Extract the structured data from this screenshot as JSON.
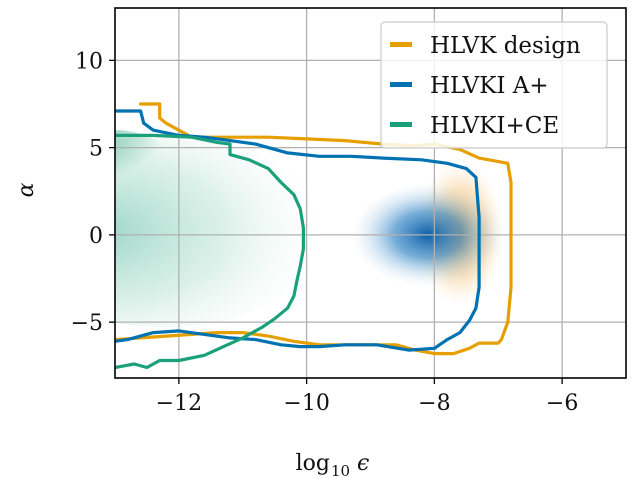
{
  "chart_data": {
    "type": "heatmap",
    "xlabel": "log",
    "xlabel_sub": "10",
    "xlabel_var": "ϵ",
    "ylabel": "α",
    "xlim": [
      -13,
      -5
    ],
    "ylim": [
      -8.2,
      13
    ],
    "grid": true,
    "legend_position": "top-right",
    "x_ticks": [
      -12,
      -10,
      -8,
      -6
    ],
    "x_tick_labels": [
      "−12",
      "−10",
      "−8",
      "−6"
    ],
    "y_ticks": [
      -5,
      0,
      5,
      10
    ],
    "y_tick_labels": [
      "−5",
      "0",
      "5",
      "10"
    ],
    "series": [
      {
        "name": "HLVK design",
        "color": "#e69f00",
        "contour": [
          [
            -12.6,
            7.5
          ],
          [
            -12.3,
            7.5
          ],
          [
            -12.3,
            6.7
          ],
          [
            -12.2,
            6.4
          ],
          [
            -12.0,
            6.0
          ],
          [
            -11.8,
            5.6
          ],
          [
            -11.2,
            5.6
          ],
          [
            -10.6,
            5.6
          ],
          [
            -10.0,
            5.5
          ],
          [
            -9.4,
            5.4
          ],
          [
            -8.8,
            5.2
          ],
          [
            -8.3,
            5.1
          ],
          [
            -8.0,
            5.2
          ],
          [
            -7.6,
            4.9
          ],
          [
            -7.3,
            4.4
          ],
          [
            -7.0,
            4.2
          ],
          [
            -6.85,
            4.1
          ],
          [
            -6.8,
            3.0
          ],
          [
            -6.8,
            1.0
          ],
          [
            -6.8,
            -1.0
          ],
          [
            -6.8,
            -3.0
          ],
          [
            -6.85,
            -5.0
          ],
          [
            -6.95,
            -6.0
          ],
          [
            -7.0,
            -6.2
          ],
          [
            -7.3,
            -6.2
          ],
          [
            -7.45,
            -6.5
          ],
          [
            -7.7,
            -6.8
          ],
          [
            -8.0,
            -6.8
          ],
          [
            -8.3,
            -6.6
          ],
          [
            -8.6,
            -6.3
          ],
          [
            -9.0,
            -6.3
          ],
          [
            -9.4,
            -6.3
          ],
          [
            -9.8,
            -6.3
          ],
          [
            -10.2,
            -6.1
          ],
          [
            -10.6,
            -5.8
          ],
          [
            -11.0,
            -5.6
          ],
          [
            -11.4,
            -5.6
          ],
          [
            -11.8,
            -5.7
          ],
          [
            -12.2,
            -5.8
          ],
          [
            -12.6,
            -5.9
          ],
          [
            -13.0,
            -6.0
          ]
        ]
      },
      {
        "name": "HLVKI A+",
        "color": "#0072b2",
        "contour": [
          [
            -13.0,
            7.1
          ],
          [
            -12.6,
            7.1
          ],
          [
            -12.55,
            6.4
          ],
          [
            -12.4,
            6.0
          ],
          [
            -12.0,
            5.7
          ],
          [
            -11.6,
            5.6
          ],
          [
            -11.2,
            5.4
          ],
          [
            -10.8,
            5.2
          ],
          [
            -10.3,
            4.7
          ],
          [
            -9.8,
            4.5
          ],
          [
            -9.3,
            4.5
          ],
          [
            -8.8,
            4.4
          ],
          [
            -8.2,
            4.3
          ],
          [
            -7.8,
            4.1
          ],
          [
            -7.5,
            3.8
          ],
          [
            -7.35,
            3.3
          ],
          [
            -7.3,
            1.0
          ],
          [
            -7.3,
            -1.0
          ],
          [
            -7.3,
            -3.0
          ],
          [
            -7.35,
            -4.2
          ],
          [
            -7.45,
            -4.9
          ],
          [
            -7.6,
            -5.6
          ],
          [
            -7.8,
            -6.0
          ],
          [
            -8.0,
            -6.5
          ],
          [
            -8.4,
            -6.6
          ],
          [
            -8.9,
            -6.3
          ],
          [
            -9.4,
            -6.3
          ],
          [
            -9.8,
            -6.4
          ],
          [
            -10.1,
            -6.4
          ],
          [
            -10.4,
            -6.3
          ],
          [
            -10.8,
            -6.0
          ],
          [
            -11.2,
            -5.9
          ],
          [
            -11.6,
            -5.7
          ],
          [
            -12.0,
            -5.5
          ],
          [
            -12.4,
            -5.6
          ],
          [
            -12.8,
            -6.0
          ],
          [
            -13.0,
            -6.1
          ]
        ]
      },
      {
        "name": "HLVKI+CE",
        "color": "#1aa07a",
        "contour": [
          [
            -13.0,
            5.7
          ],
          [
            -12.4,
            5.7
          ],
          [
            -11.8,
            5.6
          ],
          [
            -11.4,
            5.3
          ],
          [
            -11.2,
            5.2
          ],
          [
            -11.2,
            4.6
          ],
          [
            -10.9,
            4.3
          ],
          [
            -10.6,
            3.8
          ],
          [
            -10.4,
            3.0
          ],
          [
            -10.2,
            2.3
          ],
          [
            -10.1,
            1.5
          ],
          [
            -10.05,
            0.4
          ],
          [
            -10.05,
            -0.8
          ],
          [
            -10.1,
            -1.8
          ],
          [
            -10.15,
            -2.6
          ],
          [
            -10.2,
            -3.5
          ],
          [
            -10.3,
            -4.2
          ],
          [
            -10.5,
            -4.8
          ],
          [
            -10.7,
            -5.3
          ],
          [
            -11.0,
            -5.9
          ],
          [
            -11.3,
            -6.4
          ],
          [
            -11.6,
            -6.9
          ],
          [
            -12.0,
            -7.2
          ],
          [
            -12.3,
            -7.2
          ],
          [
            -12.5,
            -7.6
          ],
          [
            -12.7,
            -7.4
          ],
          [
            -13.0,
            -7.6
          ]
        ]
      }
    ]
  },
  "legend": {
    "items": [
      {
        "label": "HLVK design",
        "color": "#e69f00"
      },
      {
        "label": "HLVKI A+",
        "color": "#0072b2"
      },
      {
        "label": "HLVKI+CE",
        "color": "#1aa07a"
      }
    ]
  }
}
